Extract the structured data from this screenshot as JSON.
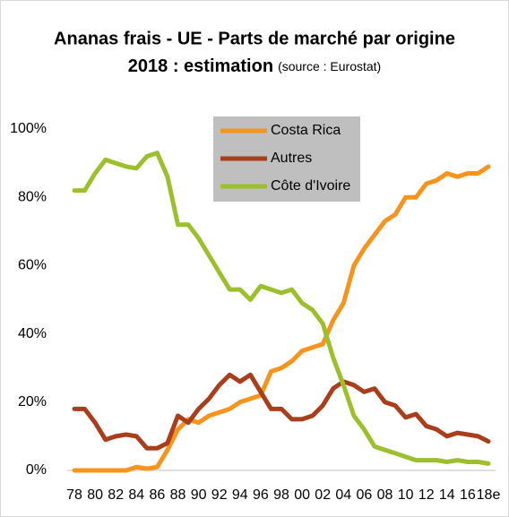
{
  "chart_data": {
    "type": "line",
    "title": "Ananas frais - UE - Parts de marché par origine",
    "subtitle": "2018 : estimation",
    "source": "(source : Eurostat)",
    "categories": [
      "78",
      null,
      "80",
      null,
      "82",
      null,
      "84",
      null,
      "86",
      null,
      "88",
      null,
      "90",
      null,
      "92",
      null,
      "94",
      null,
      "96",
      null,
      "98",
      null,
      "00",
      null,
      "02",
      null,
      "04",
      null,
      "06",
      null,
      "08",
      null,
      "10",
      null,
      "12",
      null,
      "14",
      null,
      "16",
      null,
      "18e"
    ],
    "ylim": [
      0,
      100
    ],
    "yticks": [
      {
        "value": 0,
        "label": "0%"
      },
      {
        "value": 20,
        "label": "20%"
      },
      {
        "value": 40,
        "label": "40%"
      },
      {
        "value": 60,
        "label": "60%"
      },
      {
        "value": 80,
        "label": "80%"
      },
      {
        "value": 100,
        "label": "100%"
      }
    ],
    "legend": "top",
    "series": [
      {
        "name": "Costa Rica",
        "color": "#f7941d",
        "values": [
          0,
          0,
          0,
          0,
          0,
          0,
          1,
          0.5,
          1,
          6,
          12,
          15,
          14,
          16,
          17,
          18,
          20,
          21,
          22,
          29,
          30,
          32,
          35,
          36,
          37,
          44,
          49,
          60,
          65,
          69,
          73,
          75,
          80,
          80,
          84,
          85,
          87,
          86,
          87,
          87,
          89
        ]
      },
      {
        "name": "Autres",
        "color": "#a93e1c",
        "values": [
          18,
          18,
          14,
          9,
          10,
          10.5,
          10,
          6.5,
          6.5,
          8,
          16,
          14,
          18,
          21,
          25,
          28,
          26,
          28,
          23,
          18,
          18,
          15,
          15,
          16,
          19,
          24,
          26,
          25,
          23,
          24,
          20,
          19,
          15.5,
          16.5,
          13,
          12,
          10,
          11,
          10.5,
          10,
          8.5
        ]
      },
      {
        "name": "Côte d'Ivoire",
        "color": "#9dbf2e",
        "values": [
          82,
          82,
          87,
          91,
          90,
          89,
          88.5,
          92,
          93,
          86,
          72,
          72,
          68,
          63,
          58,
          53,
          53,
          50,
          54,
          53,
          52,
          53,
          49,
          47,
          43,
          33,
          25,
          16,
          12,
          7,
          6,
          5,
          4,
          3,
          3,
          3,
          2.5,
          3,
          2.5,
          2.5,
          2
        ]
      }
    ]
  }
}
